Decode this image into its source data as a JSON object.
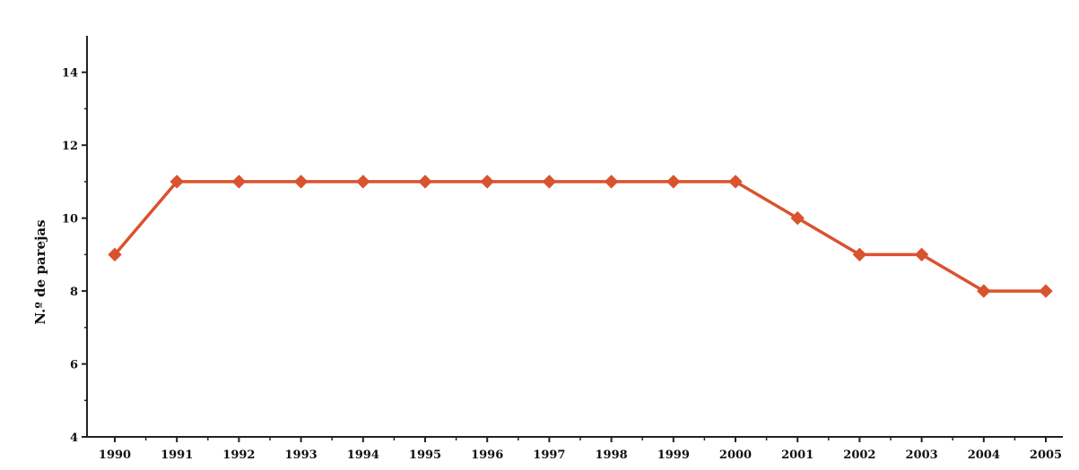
{
  "chart_data": {
    "type": "line",
    "title": "",
    "xlabel": "",
    "ylabel": "N.º de parejas",
    "x": [
      "1990",
      "1991",
      "1992",
      "1993",
      "1994",
      "1995",
      "1996",
      "1997",
      "1998",
      "1999",
      "2000",
      "2001",
      "2002",
      "2003",
      "2004",
      "2005"
    ],
    "series": [
      {
        "values": [
          9,
          11,
          11,
          11,
          11,
          11,
          11,
          11,
          11,
          11,
          11,
          10,
          9,
          9,
          8,
          8
        ],
        "color": "#d9532f",
        "marker": "diamond"
      }
    ],
    "ylim": [
      4,
      15
    ],
    "yticks": [
      4,
      6,
      8,
      10,
      12,
      14
    ],
    "grid": false,
    "legend": "none"
  }
}
